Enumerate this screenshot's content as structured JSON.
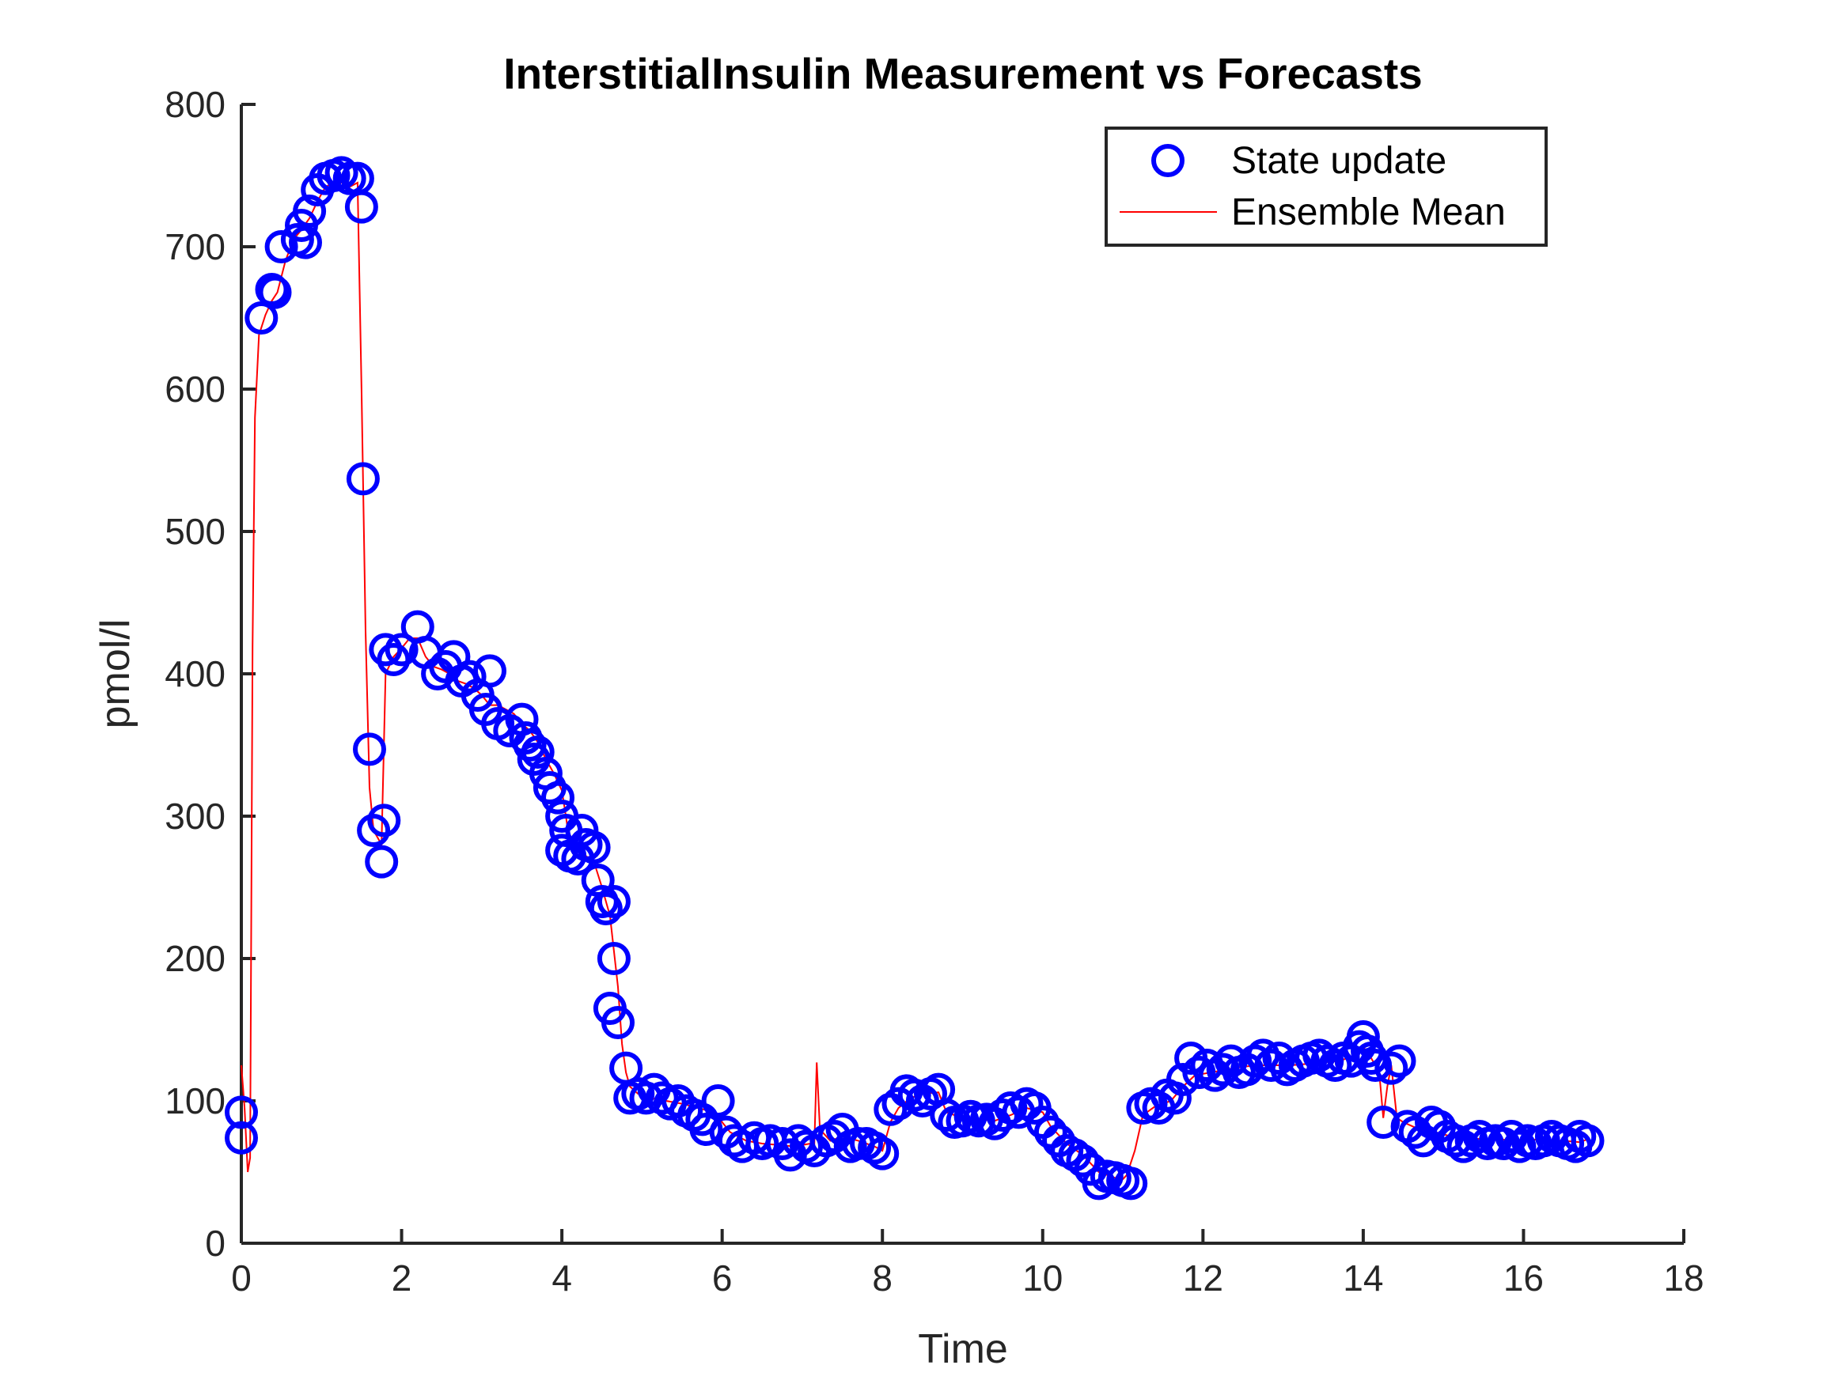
{
  "chart_data": {
    "type": "scatter",
    "title": "InterstitialInsulin Measurement vs Forecasts",
    "xlabel": "Time",
    "ylabel": "pmol/l",
    "xlim": [
      0,
      18
    ],
    "ylim": [
      0,
      800
    ],
    "x_ticks": [
      "0",
      "2",
      "4",
      "6",
      "8",
      "10",
      "12",
      "14",
      "16",
      "18"
    ],
    "y_ticks": [
      "0",
      "100",
      "200",
      "300",
      "400",
      "500",
      "600",
      "700",
      "800"
    ],
    "grid": false,
    "legend_position": "top-right",
    "colors": {
      "state_update": "#0000ff",
      "ensemble_mean": "#ff0000"
    },
    "series": [
      {
        "name": "State update",
        "kind": "marker-circle",
        "points": [
          [
            0.0,
            92
          ],
          [
            0.0,
            74
          ],
          [
            0.25,
            650
          ],
          [
            0.38,
            670
          ],
          [
            0.42,
            668
          ],
          [
            0.5,
            700
          ],
          [
            0.7,
            705
          ],
          [
            0.75,
            715
          ],
          [
            0.8,
            703
          ],
          [
            0.85,
            725
          ],
          [
            0.95,
            740
          ],
          [
            1.05,
            748
          ],
          [
            1.15,
            750
          ],
          [
            1.25,
            752
          ],
          [
            1.35,
            748
          ],
          [
            1.45,
            748
          ],
          [
            1.5,
            728
          ],
          [
            1.52,
            537
          ],
          [
            1.6,
            347
          ],
          [
            1.65,
            290
          ],
          [
            1.75,
            268
          ],
          [
            1.78,
            297
          ],
          [
            1.8,
            417
          ],
          [
            1.9,
            410
          ],
          [
            2.0,
            417
          ],
          [
            2.2,
            433
          ],
          [
            2.3,
            415
          ],
          [
            2.45,
            400
          ],
          [
            2.55,
            405
          ],
          [
            2.65,
            412
          ],
          [
            2.75,
            395
          ],
          [
            2.85,
            398
          ],
          [
            2.95,
            385
          ],
          [
            3.05,
            375
          ],
          [
            3.1,
            402
          ],
          [
            3.2,
            365
          ],
          [
            3.35,
            360
          ],
          [
            3.5,
            368
          ],
          [
            3.55,
            355
          ],
          [
            3.6,
            350
          ],
          [
            3.65,
            340
          ],
          [
            3.7,
            345
          ],
          [
            3.8,
            330
          ],
          [
            3.85,
            320
          ],
          [
            3.95,
            313
          ],
          [
            4.0,
            300
          ],
          [
            4.05,
            290
          ],
          [
            4.0,
            276
          ],
          [
            4.1,
            272
          ],
          [
            4.2,
            270
          ],
          [
            4.25,
            290
          ],
          [
            4.3,
            280
          ],
          [
            4.4,
            278
          ],
          [
            4.45,
            255
          ],
          [
            4.5,
            240
          ],
          [
            4.55,
            235
          ],
          [
            4.65,
            240
          ],
          [
            4.65,
            200
          ],
          [
            4.6,
            165
          ],
          [
            4.7,
            155
          ],
          [
            4.8,
            123
          ],
          [
            4.85,
            102
          ],
          [
            4.95,
            105
          ],
          [
            5.05,
            102
          ],
          [
            5.15,
            108
          ],
          [
            5.25,
            102
          ],
          [
            5.35,
            98
          ],
          [
            5.45,
            100
          ],
          [
            5.55,
            93
          ],
          [
            5.65,
            90
          ],
          [
            5.75,
            87
          ],
          [
            5.8,
            80
          ],
          [
            5.95,
            100
          ],
          [
            6.05,
            78
          ],
          [
            6.15,
            72
          ],
          [
            6.25,
            68
          ],
          [
            6.4,
            74
          ],
          [
            6.5,
            70
          ],
          [
            6.6,
            72
          ],
          [
            6.75,
            70
          ],
          [
            6.85,
            62
          ],
          [
            6.95,
            72
          ],
          [
            7.05,
            68
          ],
          [
            7.15,
            65
          ],
          [
            7.3,
            72
          ],
          [
            7.4,
            75
          ],
          [
            7.5,
            80
          ],
          [
            7.6,
            68
          ],
          [
            7.7,
            70
          ],
          [
            7.8,
            70
          ],
          [
            7.9,
            67
          ],
          [
            8.0,
            63
          ],
          [
            8.1,
            94
          ],
          [
            8.2,
            98
          ],
          [
            8.3,
            107
          ],
          [
            8.4,
            104
          ],
          [
            8.5,
            100
          ],
          [
            8.6,
            105
          ],
          [
            8.7,
            108
          ],
          [
            8.8,
            90
          ],
          [
            8.9,
            85
          ],
          [
            9.0,
            86
          ],
          [
            9.1,
            89
          ],
          [
            9.2,
            86
          ],
          [
            9.3,
            87
          ],
          [
            9.4,
            84
          ],
          [
            9.5,
            90
          ],
          [
            9.6,
            95
          ],
          [
            9.7,
            92
          ],
          [
            9.8,
            98
          ],
          [
            9.9,
            95
          ],
          [
            10.0,
            85
          ],
          [
            10.1,
            78
          ],
          [
            10.2,
            72
          ],
          [
            10.3,
            65
          ],
          [
            10.4,
            62
          ],
          [
            10.5,
            58
          ],
          [
            10.6,
            52
          ],
          [
            10.7,
            42
          ],
          [
            10.8,
            47
          ],
          [
            10.9,
            46
          ],
          [
            11.0,
            44
          ],
          [
            11.1,
            42
          ],
          [
            11.25,
            95
          ],
          [
            11.35,
            98
          ],
          [
            11.45,
            95
          ],
          [
            11.55,
            104
          ],
          [
            11.65,
            102
          ],
          [
            11.75,
            115
          ],
          [
            11.85,
            130
          ],
          [
            11.95,
            120
          ],
          [
            12.05,
            125
          ],
          [
            12.15,
            118
          ],
          [
            12.25,
            122
          ],
          [
            12.35,
            128
          ],
          [
            12.45,
            120
          ],
          [
            12.55,
            122
          ],
          [
            12.65,
            128
          ],
          [
            12.75,
            132
          ],
          [
            12.85,
            125
          ],
          [
            12.95,
            130
          ],
          [
            13.05,
            122
          ],
          [
            13.15,
            125
          ],
          [
            13.25,
            128
          ],
          [
            13.35,
            130
          ],
          [
            13.45,
            132
          ],
          [
            13.55,
            128
          ],
          [
            13.65,
            125
          ],
          [
            13.75,
            130
          ],
          [
            13.85,
            128
          ],
          [
            13.95,
            138
          ],
          [
            14.0,
            145
          ],
          [
            14.05,
            135
          ],
          [
            14.1,
            130
          ],
          [
            14.15,
            125
          ],
          [
            14.25,
            85
          ],
          [
            14.35,
            123
          ],
          [
            14.45,
            128
          ],
          [
            14.55,
            82
          ],
          [
            14.65,
            78
          ],
          [
            14.75,
            72
          ],
          [
            14.85,
            85
          ],
          [
            14.95,
            82
          ],
          [
            15.05,
            75
          ],
          [
            15.15,
            72
          ],
          [
            15.25,
            68
          ],
          [
            15.35,
            72
          ],
          [
            15.45,
            75
          ],
          [
            15.55,
            70
          ],
          [
            15.65,
            72
          ],
          [
            15.75,
            70
          ],
          [
            15.85,
            75
          ],
          [
            15.95,
            68
          ],
          [
            16.05,
            72
          ],
          [
            16.15,
            70
          ],
          [
            16.25,
            72
          ],
          [
            16.35,
            75
          ],
          [
            16.45,
            72
          ],
          [
            16.55,
            70
          ],
          [
            16.65,
            68
          ],
          [
            16.7,
            75
          ],
          [
            16.8,
            72
          ]
        ]
      },
      {
        "name": "Ensemble Mean",
        "kind": "line",
        "points": [
          [
            0.0,
            125
          ],
          [
            0.04,
            95
          ],
          [
            0.08,
            50
          ],
          [
            0.11,
            60
          ],
          [
            0.14,
            420
          ],
          [
            0.17,
            580
          ],
          [
            0.22,
            638
          ],
          [
            0.3,
            652
          ],
          [
            0.38,
            662
          ],
          [
            0.45,
            668
          ],
          [
            0.55,
            690
          ],
          [
            0.65,
            705
          ],
          [
            0.75,
            712
          ],
          [
            0.85,
            720
          ],
          [
            0.95,
            732
          ],
          [
            1.05,
            742
          ],
          [
            1.15,
            745
          ],
          [
            1.25,
            745
          ],
          [
            1.35,
            742
          ],
          [
            1.45,
            745
          ],
          [
            1.5,
            600
          ],
          [
            1.55,
            430
          ],
          [
            1.6,
            320
          ],
          [
            1.65,
            290
          ],
          [
            1.7,
            285
          ],
          [
            1.75,
            280
          ],
          [
            1.8,
            400
          ],
          [
            1.9,
            412
          ],
          [
            2.0,
            418
          ],
          [
            2.1,
            425
          ],
          [
            2.2,
            425
          ],
          [
            2.3,
            412
          ],
          [
            2.4,
            405
          ],
          [
            2.5,
            403
          ],
          [
            2.6,
            400
          ],
          [
            2.7,
            395
          ],
          [
            2.8,
            393
          ],
          [
            2.9,
            390
          ],
          [
            3.0,
            385
          ],
          [
            3.1,
            378
          ],
          [
            3.2,
            378
          ],
          [
            3.3,
            375
          ],
          [
            3.4,
            372
          ],
          [
            3.5,
            365
          ],
          [
            3.6,
            360
          ],
          [
            3.7,
            352
          ],
          [
            3.8,
            340
          ],
          [
            3.9,
            330
          ],
          [
            4.0,
            318
          ],
          [
            4.05,
            300
          ],
          [
            4.1,
            280
          ],
          [
            4.2,
            275
          ],
          [
            4.3,
            272
          ],
          [
            4.4,
            268
          ],
          [
            4.5,
            250
          ],
          [
            4.6,
            230
          ],
          [
            4.7,
            180
          ],
          [
            4.75,
            140
          ],
          [
            4.8,
            120
          ],
          [
            4.85,
            110
          ],
          [
            4.95,
            105
          ],
          [
            5.1,
            102
          ],
          [
            5.3,
            100
          ],
          [
            5.5,
            98
          ],
          [
            5.7,
            95
          ],
          [
            5.9,
            92
          ],
          [
            6.0,
            85
          ],
          [
            6.1,
            78
          ],
          [
            6.3,
            72
          ],
          [
            6.5,
            70
          ],
          [
            6.7,
            69
          ],
          [
            6.9,
            68
          ],
          [
            7.1,
            70
          ],
          [
            7.15,
            68
          ],
          [
            7.18,
            127
          ],
          [
            7.22,
            80
          ],
          [
            7.35,
            72
          ],
          [
            7.5,
            75
          ],
          [
            7.7,
            72
          ],
          [
            7.9,
            68
          ],
          [
            8.0,
            65
          ],
          [
            8.1,
            85
          ],
          [
            8.2,
            95
          ],
          [
            8.35,
            102
          ],
          [
            8.5,
            105
          ],
          [
            8.7,
            106
          ],
          [
            8.8,
            92
          ],
          [
            9.0,
            88
          ],
          [
            9.2,
            87
          ],
          [
            9.4,
            86
          ],
          [
            9.6,
            90
          ],
          [
            9.8,
            95
          ],
          [
            10.0,
            92
          ],
          [
            10.1,
            82
          ],
          [
            10.3,
            70
          ],
          [
            10.5,
            62
          ],
          [
            10.7,
            50
          ],
          [
            10.9,
            46
          ],
          [
            11.0,
            45
          ],
          [
            11.05,
            48
          ],
          [
            11.15,
            65
          ],
          [
            11.25,
            90
          ],
          [
            11.4,
            96
          ],
          [
            11.6,
            100
          ],
          [
            11.75,
            110
          ],
          [
            11.9,
            118
          ],
          [
            12.1,
            120
          ],
          [
            12.3,
            122
          ],
          [
            12.5,
            124
          ],
          [
            12.7,
            125
          ],
          [
            12.9,
            125
          ],
          [
            13.1,
            125
          ],
          [
            13.3,
            126
          ],
          [
            13.5,
            127
          ],
          [
            13.7,
            128
          ],
          [
            13.9,
            132
          ],
          [
            14.0,
            138
          ],
          [
            14.1,
            130
          ],
          [
            14.2,
            120
          ],
          [
            14.25,
            88
          ],
          [
            14.3,
            110
          ],
          [
            14.35,
            125
          ],
          [
            14.42,
            88
          ],
          [
            14.5,
            85
          ],
          [
            14.7,
            80
          ],
          [
            14.9,
            78
          ],
          [
            15.1,
            75
          ],
          [
            15.3,
            74
          ],
          [
            15.5,
            73
          ],
          [
            15.7,
            73
          ],
          [
            15.9,
            72
          ],
          [
            16.1,
            73
          ],
          [
            16.3,
            72
          ],
          [
            16.5,
            72
          ],
          [
            16.7,
            71
          ],
          [
            16.8,
            73
          ]
        ]
      }
    ]
  }
}
